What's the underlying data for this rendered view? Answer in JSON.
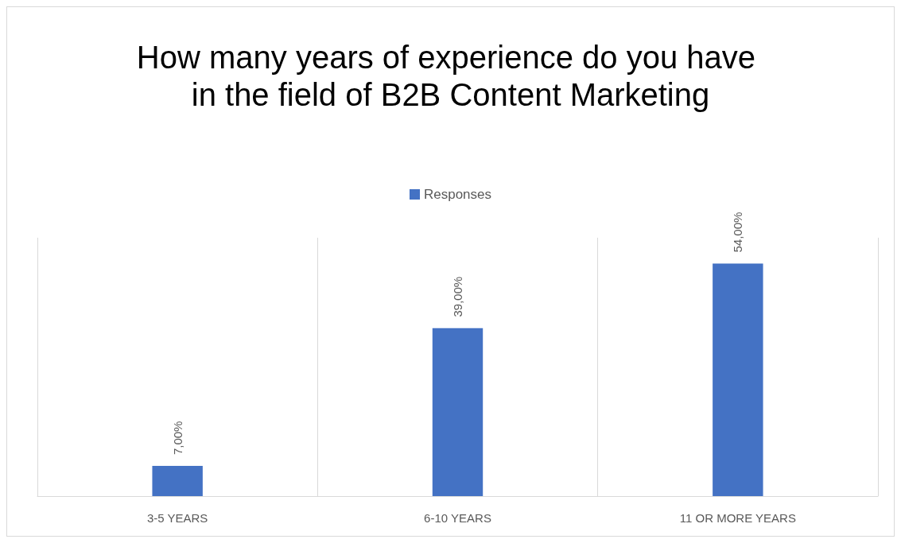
{
  "chart_data": {
    "type": "bar",
    "title": "How many years of experience do you have in the field of B2B Content Marketing",
    "categories": [
      "3-5 YEARS",
      "6-10 YEARS",
      "11 OR MORE YEARS"
    ],
    "series": [
      {
        "name": "Responses",
        "color": "#4472c4",
        "values": [
          7,
          39,
          54
        ],
        "value_labels": [
          "7,00%",
          "39,00%",
          "54,00%"
        ]
      }
    ],
    "grid": "x",
    "legend": "top"
  }
}
